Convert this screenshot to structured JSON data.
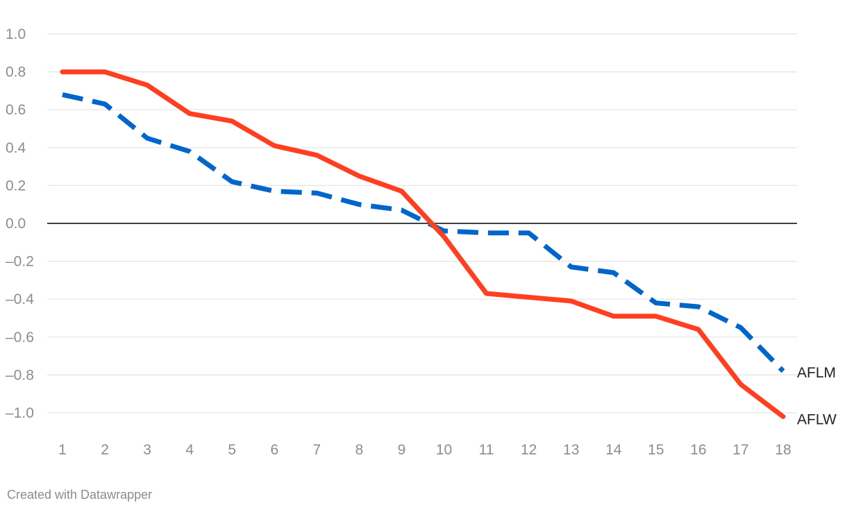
{
  "chart_data": {
    "type": "line",
    "title": "",
    "xlabel": "",
    "ylabel": "",
    "x": [
      1,
      2,
      3,
      4,
      5,
      6,
      7,
      8,
      9,
      10,
      11,
      12,
      13,
      14,
      15,
      16,
      17,
      18
    ],
    "ylim": [
      -1.0,
      1.0
    ],
    "y_ticks": [
      "1.0",
      "0.8",
      "0.6",
      "0.4",
      "0.2",
      "0.0",
      "-0.2",
      "-0.4",
      "-0.6",
      "-0.8",
      "-1.0"
    ],
    "grid": true,
    "zero_line": true,
    "series": [
      {
        "name": "AFLM",
        "color": "#0066cc",
        "style": "dashed",
        "values": [
          0.68,
          0.63,
          0.45,
          0.38,
          0.22,
          0.17,
          0.16,
          0.1,
          0.07,
          -0.04,
          -0.05,
          -0.05,
          -0.23,
          -0.26,
          -0.42,
          -0.44,
          -0.55,
          -0.78
        ]
      },
      {
        "name": "AFLW",
        "color": "#ff3f1f",
        "style": "solid",
        "values": [
          0.8,
          0.8,
          0.73,
          0.58,
          0.54,
          0.41,
          0.36,
          0.25,
          0.17,
          -0.07,
          -0.37,
          -0.39,
          -0.41,
          -0.49,
          -0.49,
          -0.56,
          -0.85,
          -1.02
        ]
      }
    ]
  },
  "footer": {
    "credit": "Created with Datawrapper"
  }
}
